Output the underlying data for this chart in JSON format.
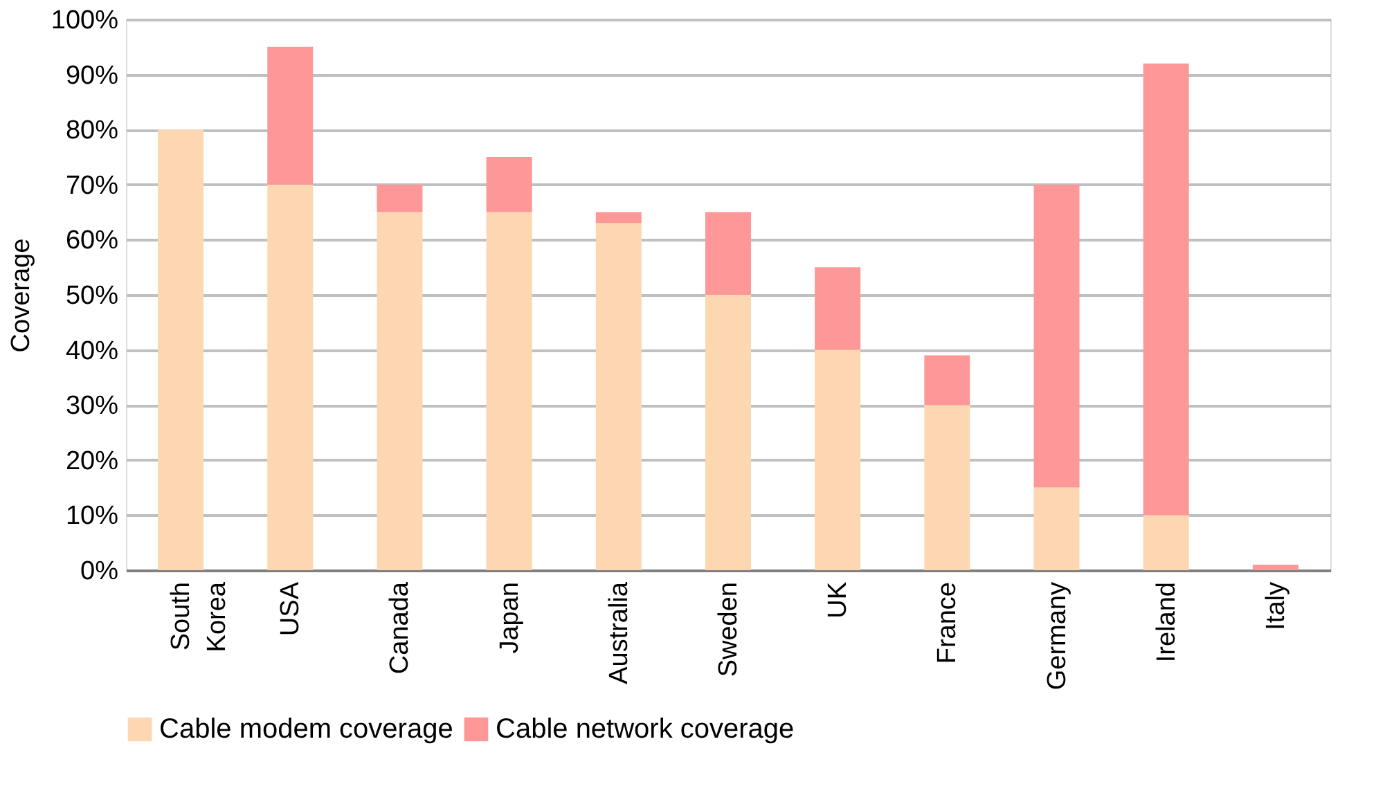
{
  "chart_data": {
    "type": "bar",
    "stacked": true,
    "ylabel": "Coverage",
    "categories": [
      "South Korea",
      "USA",
      "Canada",
      "Japan",
      "Australia",
      "Sweden",
      "UK",
      "France",
      "Germany",
      "Ireland",
      "Italy"
    ],
    "series": [
      {
        "name": "Cable modem coverage",
        "color": "#fdd6b2",
        "values": [
          80,
          70,
          65,
          65,
          63,
          50,
          40,
          30,
          15,
          10,
          0
        ]
      },
      {
        "name": "Cable network coverage",
        "color": "#fe9797",
        "values": [
          0,
          25,
          5,
          10,
          2,
          15,
          15,
          9,
          55,
          82,
          1
        ]
      }
    ],
    "ylim": [
      0,
      100
    ],
    "yticks": [
      {
        "value": 0,
        "label": "0%"
      },
      {
        "value": 10,
        "label": "10%"
      },
      {
        "value": 20,
        "label": "20%"
      },
      {
        "value": 30,
        "label": "30%"
      },
      {
        "value": 40,
        "label": "40%"
      },
      {
        "value": 50,
        "label": "50%"
      },
      {
        "value": 60,
        "label": "60%"
      },
      {
        "value": 70,
        "label": "70%"
      },
      {
        "value": 80,
        "label": "80%"
      },
      {
        "value": 90,
        "label": "90%"
      },
      {
        "value": 100,
        "label": "100%"
      }
    ],
    "grid": "y",
    "legend": "bottom"
  }
}
